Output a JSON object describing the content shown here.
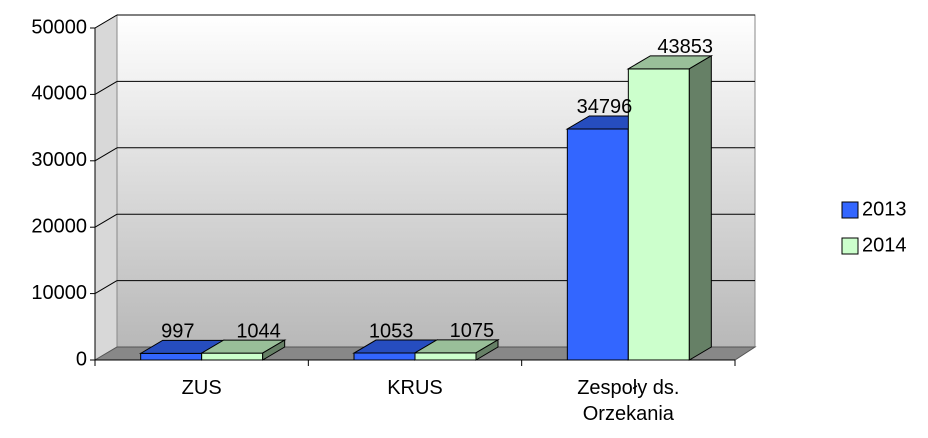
{
  "chart_data": {
    "type": "bar3d",
    "categories": [
      "ZUS",
      "KRUS",
      "Zespoły ds. Orzekania"
    ],
    "series": [
      {
        "name": "2013",
        "color": "#3366ff",
        "values": [
          997,
          1053,
          34796
        ]
      },
      {
        "name": "2014",
        "color": "#ccffcc",
        "values": [
          1044,
          1075,
          43853
        ]
      }
    ],
    "ylim": [
      0,
      50000
    ],
    "yticks": [
      0,
      10000,
      20000,
      30000,
      40000,
      50000
    ],
    "grid": true,
    "legend": "right"
  }
}
